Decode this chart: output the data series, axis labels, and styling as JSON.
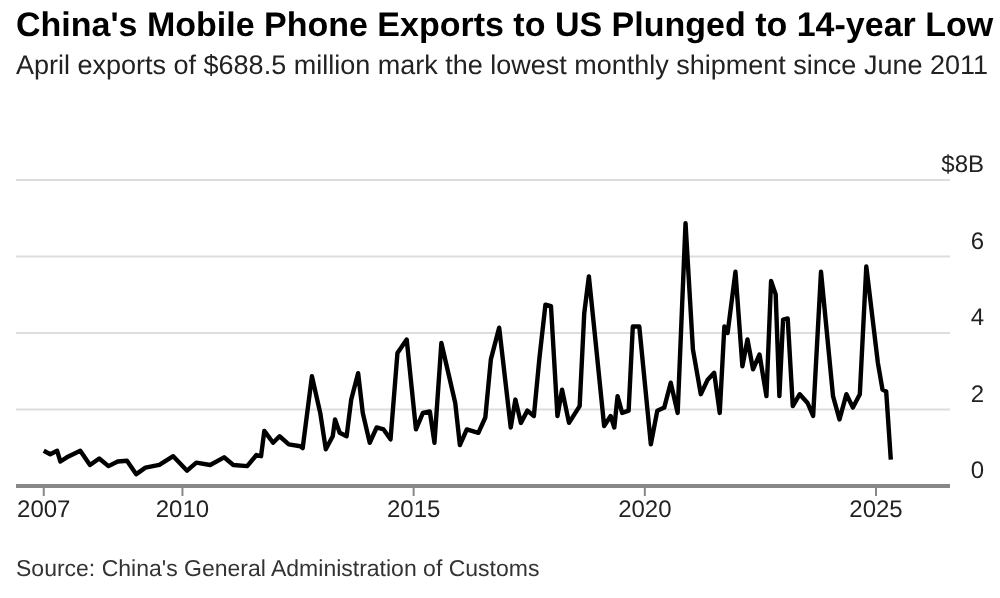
{
  "chart_data": {
    "type": "line",
    "title": "China's Mobile Phone Exports to US Plunged to 14-year Low",
    "subtitle": "April exports of $688.5 million mark the lowest monthly shipment since June 2011",
    "x": [
      2007.0,
      2007.14,
      2007.29,
      2007.36,
      2007.5,
      2007.79,
      2008.0,
      2008.2,
      2008.4,
      2008.6,
      2008.8,
      2009.0,
      2009.2,
      2009.5,
      2009.8,
      2010.1,
      2010.3,
      2010.6,
      2010.9,
      2011.1,
      2011.4,
      2011.6,
      2011.7,
      2011.77,
      2011.96,
      2012.1,
      2012.3,
      2012.55,
      2012.6,
      2012.8,
      2012.98,
      2013.1,
      2013.25,
      2013.3,
      2013.4,
      2013.55,
      2013.65,
      2013.8,
      2013.9,
      2014.05,
      2014.2,
      2014.35,
      2014.5,
      2014.65,
      2014.85,
      2015.05,
      2015.2,
      2015.35,
      2015.45,
      2015.6,
      2015.9,
      2016.0,
      2016.15,
      2016.4,
      2016.55,
      2016.67,
      2016.85,
      2017.1,
      2017.2,
      2017.32,
      2017.46,
      2017.6,
      2017.72,
      2017.85,
      2017.97,
      2018.11,
      2018.21,
      2018.36,
      2018.59,
      2018.69,
      2018.79,
      2018.93,
      2019.12,
      2019.26,
      2019.34,
      2019.41,
      2019.51,
      2019.65,
      2019.74,
      2019.88,
      2020.13,
      2020.27,
      2020.42,
      2020.56,
      2020.71,
      2020.88,
      2021.04,
      2021.21,
      2021.36,
      2021.5,
      2021.62,
      2021.72,
      2021.79,
      2021.96,
      2022.11,
      2022.22,
      2022.34,
      2022.48,
      2022.63,
      2022.73,
      2022.83,
      2022.91,
      2022.99,
      2023.09,
      2023.2,
      2023.35,
      2023.52,
      2023.64,
      2023.81,
      2024.07,
      2024.21,
      2024.36,
      2024.5,
      2024.65,
      2024.79,
      2025.04,
      2025.14,
      2025.22,
      2025.32
    ],
    "series": [
      {
        "color": "#000000",
        "values": [
          0.92,
          0.83,
          0.92,
          0.64,
          0.75,
          0.92,
          0.55,
          0.72,
          0.52,
          0.64,
          0.66,
          0.31,
          0.48,
          0.55,
          0.78,
          0.4,
          0.61,
          0.55,
          0.75,
          0.55,
          0.52,
          0.81,
          0.78,
          1.44,
          1.13,
          1.3,
          1.09,
          1.04,
          0.99,
          2.87,
          1.91,
          0.96,
          1.3,
          1.74,
          1.39,
          1.3,
          2.26,
          2.95,
          1.91,
          1.13,
          1.53,
          1.48,
          1.22,
          3.48,
          3.83,
          1.48,
          1.91,
          1.95,
          1.13,
          3.74,
          2.17,
          1.07,
          1.48,
          1.39,
          1.79,
          3.31,
          4.14,
          1.53,
          2.26,
          1.65,
          1.97,
          1.83,
          3.34,
          4.74,
          4.7,
          1.83,
          2.52,
          1.65,
          2.09,
          4.52,
          5.48,
          3.83,
          1.57,
          1.83,
          1.53,
          2.35,
          1.91,
          1.97,
          4.17,
          4.17,
          1.09,
          1.97,
          2.05,
          2.7,
          1.91,
          6.87,
          3.57,
          2.4,
          2.78,
          2.96,
          1.91,
          4.17,
          4.0,
          5.6,
          3.13,
          3.83,
          3.05,
          3.44,
          2.35,
          5.36,
          5.01,
          2.35,
          4.35,
          4.38,
          2.09,
          2.4,
          2.17,
          1.83,
          5.6,
          2.35,
          1.74,
          2.4,
          2.05,
          2.4,
          5.74,
          3.22,
          2.52,
          2.47,
          0.69
        ]
      }
    ],
    "xlim": [
      2006.4,
      2026.6
    ],
    "xticks": [
      2007,
      2010,
      2015,
      2020,
      2025
    ],
    "ylim": [
      0,
      8
    ],
    "yticks": [
      0,
      2,
      4,
      6,
      {
        "value": 8,
        "label": "$8B"
      }
    ],
    "grid": "y",
    "legend": false,
    "marker": "none",
    "line_style": "solid",
    "annotations": [
      "Source: China's General Administration of Customs"
    ]
  }
}
